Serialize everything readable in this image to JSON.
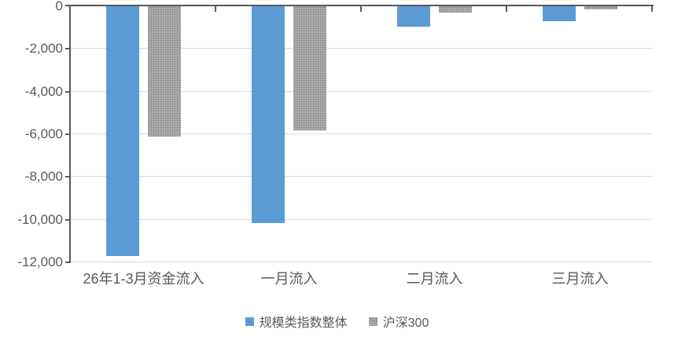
{
  "chart_data": {
    "type": "bar",
    "title": "",
    "xlabel": "",
    "ylabel": "",
    "categories": [
      "26年1-3月资金流入",
      "一月流入",
      "二月流入",
      "三月流入"
    ],
    "series": [
      {
        "name": "规模类指数整体",
        "color": "#5B9BD5",
        "fill": "solid",
        "values": [
          -11700,
          -10150,
          -950,
          -700
        ]
      },
      {
        "name": "沪深300",
        "color": "#A6A6A6",
        "fill": "dotted-pattern",
        "values": [
          -6100,
          -5800,
          -300,
          -150
        ]
      }
    ],
    "ylim": [
      -12000,
      0
    ],
    "ytick_step": 2000,
    "yticks": [
      0,
      -2000,
      -4000,
      -6000,
      -8000,
      -10000,
      -12000
    ],
    "ytick_labels": [
      "0",
      "-2,000",
      "-4,000",
      "-6,000",
      "-8,000",
      "-10,000",
      "-12,000"
    ],
    "grid": true,
    "legend_position": "bottom-center",
    "legend": [
      "规模类指数整体",
      "沪深300"
    ]
  },
  "colors": {
    "background": "#FFFFFF",
    "axis_line": "#595959",
    "gridline": "#DBDBDB",
    "tick_label": "#595959",
    "series_blue": "#5B9BD5",
    "series_gray": "#A6A6A6"
  }
}
